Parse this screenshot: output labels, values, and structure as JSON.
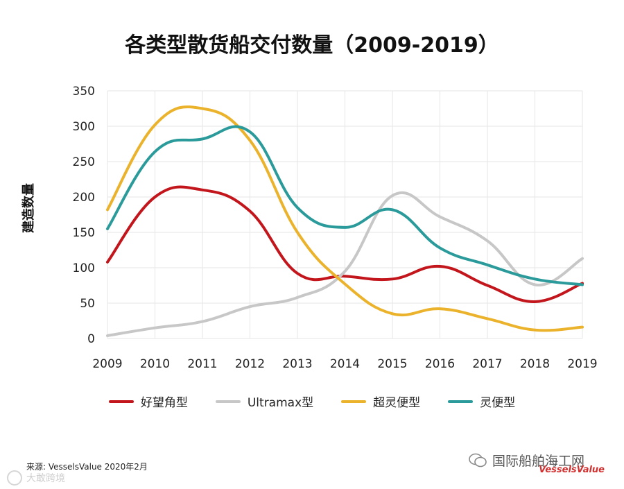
{
  "title": "各类型散货船交付数量（2009-2019）",
  "ylabel": "建造数量",
  "source": "来源: VesselsValue 2020年2月",
  "wechat_account": "国际船舶海工网",
  "brand": "VesselsValue",
  "corner_watermark": "大敢跨境",
  "chart_data": {
    "type": "line",
    "x": [
      2009,
      2010,
      2011,
      2012,
      2013,
      2014,
      2015,
      2016,
      2017,
      2018,
      2019
    ],
    "ylim": [
      0,
      350
    ],
    "yticks": [
      0,
      50,
      100,
      150,
      200,
      250,
      300,
      350
    ],
    "grid": true,
    "legend_position": "bottom",
    "series": [
      {
        "name": "好望角型",
        "color": "#c3161c",
        "values": [
          108,
          200,
          210,
          180,
          92,
          88,
          84,
          102,
          75,
          52,
          78
        ]
      },
      {
        "name": "Ultramax型",
        "color": "#c7c7c7",
        "values": [
          4,
          15,
          24,
          45,
          58,
          95,
          202,
          172,
          138,
          76,
          113
        ]
      },
      {
        "name": "超灵便型",
        "color": "#ebb22b",
        "values": [
          182,
          302,
          325,
          280,
          150,
          77,
          35,
          42,
          28,
          12,
          16
        ]
      },
      {
        "name": "灵便型",
        "color": "#2a9a9a",
        "values": [
          155,
          264,
          282,
          292,
          185,
          157,
          182,
          128,
          104,
          84,
          76
        ]
      }
    ]
  }
}
